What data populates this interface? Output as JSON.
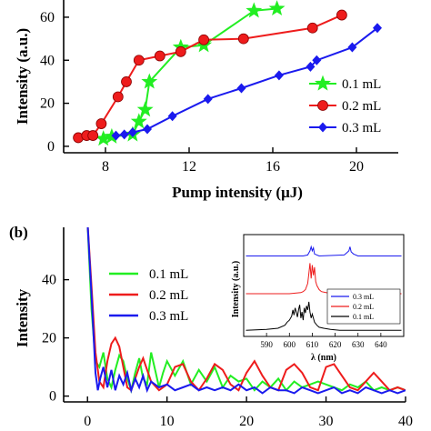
{
  "chart_data": [
    {
      "id": "top",
      "type": "line",
      "xlabel": "Pump intensity (μJ)",
      "ylabel": "Intensity (a.u.)",
      "xlim": [
        6,
        22
      ],
      "ylim": [
        -3,
        68
      ],
      "xticks": [
        "8",
        "12",
        "16",
        "20"
      ],
      "yticks": [
        "0",
        "20",
        "40",
        "60"
      ],
      "legend_position": "bottom-right",
      "series": [
        {
          "name": "0.1 mL",
          "color": "#22ee22",
          "marker": "star",
          "x": [
            7.9,
            8.3,
            9.3,
            9.6,
            9.9,
            10.1,
            11.6,
            12.7,
            15.1,
            16.2
          ],
          "y": [
            3.5,
            4.5,
            5.5,
            11.5,
            17,
            30,
            46,
            47,
            63,
            64
          ]
        },
        {
          "name": "0.2 mL",
          "color": "#ee1c1c",
          "marker": "circle",
          "x": [
            6.7,
            7.1,
            7.4,
            7.8,
            8.6,
            9.0,
            9.6,
            10.6,
            11.6,
            12.7,
            14.6,
            17.9,
            19.3
          ],
          "y": [
            4,
            5,
            5,
            10.5,
            23,
            30,
            40,
            42,
            44,
            49.5,
            50,
            55,
            61
          ]
        },
        {
          "name": "0.3 mL",
          "color": "#1a1aee",
          "marker": "diamond",
          "x": [
            8.5,
            8.9,
            9.3,
            10.0,
            11.2,
            12.9,
            14.5,
            16.3,
            17.8,
            18.1,
            19.8,
            21.0
          ],
          "y": [
            5,
            5.5,
            6.5,
            8,
            14,
            22,
            27,
            33,
            37,
            40,
            46,
            55
          ]
        }
      ]
    },
    {
      "id": "bottom",
      "panel_label": "(b)",
      "type": "line",
      "ylabel": "Intensity",
      "xlim": [
        -3,
        40
      ],
      "ylim": [
        -2,
        58
      ],
      "xticks": [
        "0",
        "10",
        "20",
        "30",
        "40"
      ],
      "yticks": [
        "0",
        "20",
        "40"
      ],
      "legend_position": "top-center",
      "series": [
        {
          "name": "0.1 mL",
          "color": "#22ee22",
          "x": [
            0,
            0.5,
            1,
            1.5,
            2,
            2.5,
            3,
            3.5,
            4,
            4.5,
            5,
            5.5,
            6,
            6.5,
            7,
            7.5,
            8,
            8.5,
            9,
            9.5,
            10,
            11,
            12,
            13,
            14,
            15,
            16,
            17,
            18,
            19,
            20,
            21,
            22,
            23,
            24,
            25,
            26,
            27,
            28,
            29,
            30,
            31,
            32,
            33,
            34,
            35,
            36,
            37,
            38,
            39,
            40
          ],
          "y": [
            60,
            30,
            12,
            10,
            15,
            6,
            3,
            9,
            14,
            12,
            6,
            2,
            8,
            13,
            6,
            4,
            15,
            9,
            3,
            8,
            12,
            7,
            12,
            4,
            9,
            5,
            10,
            3,
            7,
            5,
            6,
            2,
            5,
            3,
            6,
            2,
            5,
            3,
            4,
            5,
            4,
            3,
            2,
            4,
            3,
            5,
            2,
            3,
            2,
            3,
            2
          ]
        },
        {
          "name": "0.2 mL",
          "color": "#ee1c1c",
          "x": [
            0,
            0.5,
            1,
            1.5,
            2,
            2.5,
            3,
            3.5,
            4,
            4.5,
            5,
            5.5,
            6,
            6.5,
            7,
            8,
            9,
            10,
            11,
            12,
            13,
            14,
            15,
            16,
            17,
            18,
            19,
            20,
            21,
            22,
            23,
            24,
            25,
            26,
            27,
            28,
            29,
            30,
            31,
            32,
            33,
            34,
            35,
            36,
            37,
            38,
            39,
            40
          ],
          "y": [
            60,
            38,
            15,
            5,
            3,
            12,
            18,
            20,
            17,
            10,
            3,
            2,
            6,
            10,
            13,
            5,
            2,
            4,
            10,
            11,
            5,
            2,
            6,
            11,
            9,
            4,
            2,
            8,
            12,
            7,
            3,
            2,
            9,
            11,
            8,
            3,
            2,
            10,
            11,
            7,
            3,
            2,
            5,
            8,
            5,
            2,
            3,
            2
          ]
        },
        {
          "name": "0.3 mL",
          "color": "#1a1aee",
          "x": [
            0,
            0.5,
            1,
            1.3,
            1.6,
            2,
            2.5,
            3,
            3.5,
            4,
            4.5,
            5,
            5.5,
            6,
            6.5,
            7,
            7.5,
            8,
            9,
            10,
            11,
            12,
            13,
            14,
            15,
            16,
            17,
            18,
            19,
            20,
            21,
            22,
            23,
            24,
            25,
            26,
            27,
            28,
            29,
            30,
            31,
            32,
            33,
            34,
            35,
            36,
            37,
            38,
            39,
            40
          ],
          "y": [
            60,
            35,
            8,
            2,
            6,
            10,
            3,
            9,
            2,
            7,
            4,
            8,
            2,
            6,
            3,
            7,
            2,
            5,
            3,
            4,
            2,
            3,
            4,
            2,
            3,
            2,
            3,
            2,
            4,
            2,
            3,
            1,
            3,
            2,
            2,
            1,
            3,
            2,
            1,
            2,
            3,
            1,
            2,
            1,
            3,
            2,
            1,
            2,
            1,
            2
          ]
        }
      ]
    },
    {
      "id": "inset",
      "type": "line",
      "xlabel": "λ (nm)",
      "ylabel": "Intensity (a.u.)",
      "xlim": [
        580,
        650
      ],
      "ylim": [
        0,
        1
      ],
      "xticks": [
        "590",
        "600",
        "610",
        "620",
        "630",
        "640"
      ],
      "legend_position": "bottom-right",
      "legend": [
        "0.3 mL",
        "0.2 mL",
        "0.1 mL"
      ],
      "series": [
        {
          "name": "0.3 mL",
          "color": "#1a1aee",
          "offset": 0.79,
          "x": [
            581,
            600,
            606,
            608,
            609,
            609.5,
            610,
            610.5,
            611,
            613,
            624,
            625,
            626,
            626.5,
            627,
            628,
            630,
            645,
            649
          ],
          "y": [
            0,
            0,
            0,
            0.01,
            0.05,
            0.09,
            0.05,
            0.08,
            0.02,
            0,
            0.01,
            0.03,
            0.05,
            0.09,
            0.04,
            0.02,
            0,
            0,
            0
          ]
        },
        {
          "name": "0.2 mL",
          "color": "#ee1c1c",
          "offset": 0.42,
          "x": [
            581,
            600,
            605,
            606,
            607,
            608,
            608.5,
            609,
            609.5,
            610,
            610.5,
            611,
            611.5,
            612,
            613,
            614,
            616,
            620,
            649
          ],
          "y": [
            0,
            0,
            0.01,
            0.02,
            0.04,
            0.1,
            0.2,
            0.3,
            0.15,
            0.28,
            0.18,
            0.26,
            0.12,
            0.08,
            0.04,
            0.02,
            0.01,
            0,
            0
          ]
        },
        {
          "name": "0.1 mL",
          "color": "#000000",
          "offset": 0.06,
          "x": [
            581,
            590,
            595,
            598,
            599,
            600,
            601,
            601.5,
            602,
            602.5,
            603,
            603.5,
            604,
            604.5,
            605,
            605.5,
            606,
            606.5,
            607,
            607.5,
            608,
            608.5,
            609,
            609.5,
            610,
            611,
            612,
            613,
            615,
            618,
            622,
            649
          ],
          "y": [
            0,
            0.01,
            0.02,
            0.05,
            0.08,
            0.1,
            0.14,
            0.2,
            0.15,
            0.22,
            0.18,
            0.13,
            0.2,
            0.25,
            0.12,
            0.18,
            0.1,
            0.22,
            0.17,
            0.24,
            0.2,
            0.28,
            0.18,
            0.12,
            0.16,
            0.08,
            0.05,
            0.03,
            0.02,
            0.01,
            0,
            0
          ]
        }
      ]
    }
  ]
}
